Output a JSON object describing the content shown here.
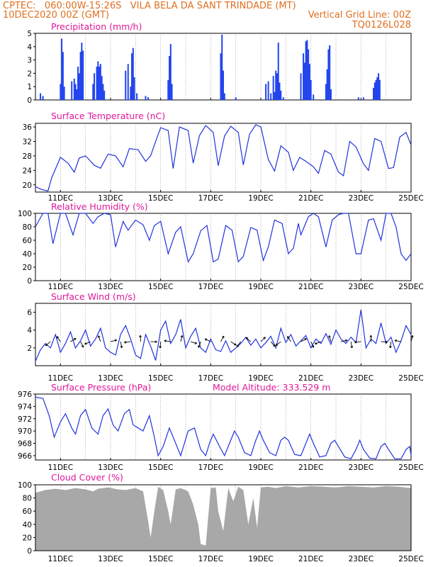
{
  "header": {
    "line1_left": "CPTEC:   060:00W-15:26S   VILA BELA DA SANT TRINDADE (MT)",
    "line2_left": "10DEC2020 00Z (GMT)",
    "line2_right": "Vertical Grid Line: 00Z",
    "line3_right": "TQ0126L028",
    "color": "#e07020"
  },
  "colors": {
    "title": "#e0189a",
    "line": "#2233dd",
    "bar": "#2244ee",
    "cloud": "#a8a8a8",
    "arrow": "#000000"
  },
  "x_ticks": [
    "11DEC",
    "13DEC",
    "15DEC",
    "17DEC",
    "19DEC",
    "21DEC",
    "23DEC",
    "25DEC"
  ],
  "chart_data": [
    {
      "type": "bar",
      "title": "Precipitation (mm/h)",
      "ylim": [
        0,
        5
      ],
      "yticks": [
        0,
        1,
        2,
        3,
        4,
        5
      ],
      "xlim_days": [
        10,
        25
      ],
      "x_units": "day of December 2020",
      "x": [
        10.2,
        10.3,
        11.0,
        11.05,
        11.1,
        11.15,
        11.45,
        11.55,
        11.6,
        11.65,
        11.7,
        11.75,
        11.8,
        11.85,
        11.9,
        12.3,
        12.35,
        12.45,
        12.5,
        12.55,
        12.6,
        12.65,
        12.7,
        12.75,
        13.6,
        13.7,
        13.8,
        13.85,
        13.9,
        13.95,
        14.05,
        14.4,
        14.5,
        15.3,
        15.35,
        15.4,
        15.45,
        17.4,
        17.45,
        17.5,
        17.55,
        18.0,
        19.2,
        19.3,
        19.4,
        19.5,
        19.55,
        19.6,
        19.65,
        19.7,
        19.75,
        19.8,
        19.9,
        20.6,
        20.7,
        20.75,
        20.8,
        20.85,
        20.9,
        20.95,
        21.0,
        21.1,
        21.6,
        21.65,
        21.7,
        21.75,
        21.8,
        22.9,
        23.1,
        23.5,
        23.55,
        23.6,
        23.65,
        23.7,
        23.75
      ],
      "values": [
        0.5,
        0.3,
        1.2,
        4.6,
        3.6,
        1.0,
        1.4,
        1.6,
        1.2,
        0.8,
        2.5,
        2.0,
        3.6,
        4.3,
        3.7,
        1.2,
        2.0,
        2.5,
        2.9,
        2.5,
        2.7,
        1.8,
        1.2,
        0.7,
        2.2,
        2.7,
        1.0,
        3.5,
        3.9,
        1.7,
        0.5,
        0.3,
        0.2,
        1.5,
        3.3,
        4.2,
        1.2,
        3.5,
        4.9,
        2.2,
        0.5,
        0.2,
        1.2,
        1.4,
        0.5,
        1.8,
        0.6,
        2.2,
        2.0,
        4.3,
        1.3,
        0.7,
        0.2,
        2.0,
        3.5,
        2.8,
        4.4,
        4.5,
        3.8,
        2.7,
        1.5,
        0.4,
        1.2,
        2.3,
        3.8,
        4.1,
        0.8,
        0.2,
        0.2,
        0.9,
        1.3,
        1.5,
        1.7,
        2.0,
        1.5
      ]
    },
    {
      "type": "line",
      "title": "Surface Temperature (nC)",
      "ylim": [
        18,
        37
      ],
      "yticks": [
        20,
        24,
        28,
        32,
        36
      ],
      "xlim_days": [
        10,
        25
      ],
      "x_units": "day of December 2020",
      "x": [
        10.0,
        10.25,
        10.5,
        10.65,
        11.0,
        11.3,
        11.55,
        11.75,
        12.0,
        12.35,
        12.6,
        12.9,
        13.2,
        13.5,
        13.75,
        14.1,
        14.4,
        14.6,
        14.75,
        15.0,
        15.3,
        15.5,
        15.75,
        16.1,
        16.3,
        16.55,
        16.8,
        17.1,
        17.3,
        17.55,
        17.8,
        18.1,
        18.3,
        18.55,
        18.8,
        19.0,
        19.3,
        19.55,
        19.8,
        20.1,
        20.3,
        20.55,
        20.8,
        21.1,
        21.3,
        21.55,
        21.8,
        22.1,
        22.3,
        22.55,
        22.8,
        23.1,
        23.3,
        23.55,
        23.8,
        24.1,
        24.3,
        24.55,
        24.8,
        25.0
      ],
      "values": [
        19.5,
        18.7,
        18.3,
        22.0,
        27.6,
        26.0,
        23.5,
        27.4,
        28.0,
        25.4,
        24.6,
        28.5,
        28.0,
        25.0,
        30.0,
        29.7,
        26.5,
        28.0,
        31.0,
        35.8,
        35.0,
        24.5,
        36.0,
        35.0,
        26.0,
        33.6,
        36.4,
        34.5,
        25.3,
        33.5,
        36.2,
        34.5,
        25.5,
        34.0,
        36.6,
        36.0,
        27.0,
        23.8,
        30.8,
        29.0,
        24.0,
        27.6,
        26.5,
        25.0,
        23.2,
        29.5,
        28.5,
        23.5,
        22.5,
        32.0,
        30.5,
        25.8,
        24.0,
        32.8,
        32.0,
        24.5,
        24.8,
        33.2,
        34.5,
        31.0
      ]
    },
    {
      "type": "line",
      "title": "Relative Humidity (%)",
      "ylim": [
        0,
        100
      ],
      "yticks": [
        0,
        20,
        40,
        60,
        80,
        100
      ],
      "xlim_days": [
        10,
        25
      ],
      "x_units": "day of December 2020",
      "x": [
        10.0,
        10.3,
        10.5,
        10.7,
        11.0,
        11.2,
        11.5,
        11.75,
        12.0,
        12.3,
        12.5,
        12.75,
        13.0,
        13.2,
        13.5,
        13.7,
        14.0,
        14.3,
        14.55,
        14.75,
        15.0,
        15.3,
        15.6,
        15.8,
        16.1,
        16.3,
        16.6,
        16.85,
        17.1,
        17.3,
        17.6,
        17.85,
        18.1,
        18.3,
        18.6,
        18.85,
        19.1,
        19.3,
        19.55,
        19.85,
        20.1,
        20.3,
        20.5,
        20.6,
        20.9,
        21.1,
        21.3,
        21.6,
        21.85,
        22.1,
        22.3,
        22.5,
        22.8,
        23.0,
        23.3,
        23.5,
        23.8,
        24.0,
        24.2,
        24.4,
        24.6,
        24.8,
        25.0
      ],
      "values": [
        80,
        100,
        100,
        55,
        100,
        100,
        68,
        100,
        100,
        85,
        95,
        100,
        98,
        50,
        88,
        75,
        90,
        83,
        60,
        82,
        88,
        40,
        72,
        80,
        28,
        40,
        74,
        82,
        28,
        32,
        82,
        75,
        28,
        36,
        79,
        75,
        30,
        50,
        90,
        85,
        40,
        48,
        85,
        68,
        95,
        100,
        95,
        50,
        90,
        98,
        100,
        100,
        40,
        40,
        90,
        92,
        60,
        100,
        100,
        80,
        40,
        30,
        40
      ]
    },
    {
      "type": "line",
      "title": "Surface Wind (m/s)",
      "ylim": [
        0,
        7
      ],
      "yticks": [
        2,
        4,
        6
      ],
      "xlim_days": [
        10,
        25
      ],
      "x_units": "day of December 2020",
      "x": [
        10.0,
        10.2,
        10.4,
        10.6,
        10.8,
        11.0,
        11.2,
        11.4,
        11.6,
        11.8,
        12.0,
        12.2,
        12.4,
        12.6,
        12.8,
        13.0,
        13.2,
        13.4,
        13.6,
        13.8,
        14.0,
        14.2,
        14.4,
        14.6,
        14.8,
        15.0,
        15.2,
        15.4,
        15.6,
        15.8,
        16.0,
        16.2,
        16.4,
        16.6,
        16.8,
        17.0,
        17.2,
        17.4,
        17.6,
        17.8,
        18.0,
        18.2,
        18.4,
        18.6,
        18.8,
        19.0,
        19.2,
        19.4,
        19.6,
        19.8,
        20.0,
        20.2,
        20.4,
        20.6,
        20.8,
        21.0,
        21.2,
        21.4,
        21.6,
        21.8,
        22.0,
        22.2,
        22.4,
        22.6,
        22.8,
        23.0,
        23.2,
        23.4,
        23.6,
        23.8,
        24.0,
        24.2,
        24.4,
        24.6,
        24.8,
        25.0
      ],
      "values": [
        0.5,
        1.8,
        2.5,
        2.0,
        3.5,
        1.5,
        2.5,
        3.8,
        2.0,
        2.8,
        4.0,
        2.2,
        3.0,
        4.2,
        2.0,
        1.5,
        1.2,
        3.5,
        4.5,
        3.0,
        1.2,
        0.8,
        3.5,
        2.2,
        0.6,
        4.0,
        5.0,
        2.5,
        3.5,
        5.2,
        2.0,
        3.3,
        4.2,
        2.0,
        1.5,
        3.0,
        1.8,
        1.6,
        2.8,
        1.5,
        2.0,
        2.5,
        3.2,
        2.3,
        3.0,
        2.0,
        2.6,
        3.3,
        2.0,
        4.2,
        2.6,
        3.5,
        2.2,
        2.8,
        3.4,
        2.0,
        3.0,
        2.5,
        3.6,
        2.4,
        4.0,
        3.0,
        2.5,
        3.2,
        2.6,
        6.3,
        2.0,
        3.0,
        2.5,
        4.8,
        2.5,
        3.2,
        1.5,
        2.8,
        4.5,
        3.5
      ]
    },
    {
      "type": "line",
      "title": "Surface Pressure (hPa)",
      "annotation": "Model Altitude: 333.529 m",
      "ylim": [
        965.3,
        976
      ],
      "yticks": [
        966,
        968,
        970,
        972,
        974,
        976
      ],
      "xlim_days": [
        10,
        25
      ],
      "x_units": "day of December 2020",
      "x": [
        10.0,
        10.3,
        10.55,
        10.75,
        11.0,
        11.2,
        11.45,
        11.6,
        11.8,
        12.0,
        12.25,
        12.5,
        12.7,
        12.9,
        13.1,
        13.3,
        13.55,
        13.75,
        13.9,
        14.1,
        14.3,
        14.55,
        14.75,
        14.9,
        15.1,
        15.35,
        15.6,
        15.8,
        15.95,
        16.1,
        16.35,
        16.6,
        16.8,
        16.95,
        17.1,
        17.35,
        17.55,
        17.75,
        17.95,
        18.1,
        18.35,
        18.6,
        18.8,
        18.95,
        19.1,
        19.35,
        19.6,
        19.8,
        19.95,
        20.1,
        20.35,
        20.6,
        20.8,
        20.95,
        21.1,
        21.35,
        21.6,
        21.8,
        21.95,
        22.1,
        22.35,
        22.6,
        22.8,
        22.95,
        23.1,
        23.35,
        23.6,
        23.8,
        23.95,
        24.1,
        24.35,
        24.6,
        24.8,
        24.95,
        25.0
      ],
      "values": [
        975.5,
        975.3,
        972.5,
        969.0,
        971.5,
        972.8,
        970.5,
        969.5,
        972.5,
        973.5,
        970.5,
        969.5,
        972.5,
        973.6,
        971.0,
        970.0,
        972.8,
        973.5,
        971.0,
        970.5,
        970.0,
        972.5,
        969.0,
        966.0,
        967.5,
        970.5,
        968.0,
        966.0,
        968.0,
        970.0,
        970.5,
        967.0,
        966.0,
        968.0,
        969.5,
        967.5,
        966.0,
        968.0,
        970.0,
        969.0,
        966.5,
        966.0,
        968.5,
        970.0,
        968.5,
        966.5,
        966.0,
        968.5,
        969.0,
        968.5,
        966.2,
        966.0,
        968.0,
        969.5,
        968.0,
        965.8,
        966.0,
        968.0,
        968.5,
        967.5,
        965.8,
        965.5,
        967.0,
        968.5,
        967.0,
        965.6,
        965.5,
        967.5,
        968.0,
        967.0,
        965.5,
        965.5,
        967.0,
        967.5,
        966.0
      ]
    },
    {
      "type": "area",
      "title": "Cloud Cover (%)",
      "ylim": [
        0,
        100
      ],
      "yticks": [
        0,
        20,
        40,
        60,
        80,
        100
      ],
      "xlim_days": [
        10,
        25
      ],
      "x_units": "day of December 2020",
      "x": [
        10.0,
        10.4,
        10.8,
        11.2,
        11.6,
        12.0,
        12.3,
        12.5,
        12.9,
        13.3,
        13.6,
        14.0,
        14.3,
        14.5,
        14.6,
        14.75,
        14.9,
        15.1,
        15.3,
        15.4,
        15.6,
        15.8,
        16.1,
        16.3,
        16.5,
        16.6,
        16.8,
        17.0,
        17.2,
        17.3,
        17.5,
        17.7,
        17.9,
        18.1,
        18.3,
        18.5,
        18.7,
        18.85,
        19.0,
        19.3,
        19.6,
        20.0,
        20.5,
        21.0,
        21.5,
        22.0,
        22.5,
        23.0,
        23.5,
        24.0,
        24.5,
        25.0
      ],
      "values": [
        88,
        92,
        94,
        92,
        95,
        93,
        90,
        94,
        96,
        93,
        92,
        95,
        90,
        45,
        20,
        60,
        97,
        92,
        60,
        40,
        93,
        95,
        90,
        70,
        40,
        10,
        8,
        95,
        96,
        60,
        30,
        95,
        75,
        97,
        92,
        40,
        80,
        35,
        96,
        97,
        95,
        98,
        96,
        98,
        97,
        96,
        98,
        97,
        96,
        98,
        97,
        95
      ]
    }
  ]
}
